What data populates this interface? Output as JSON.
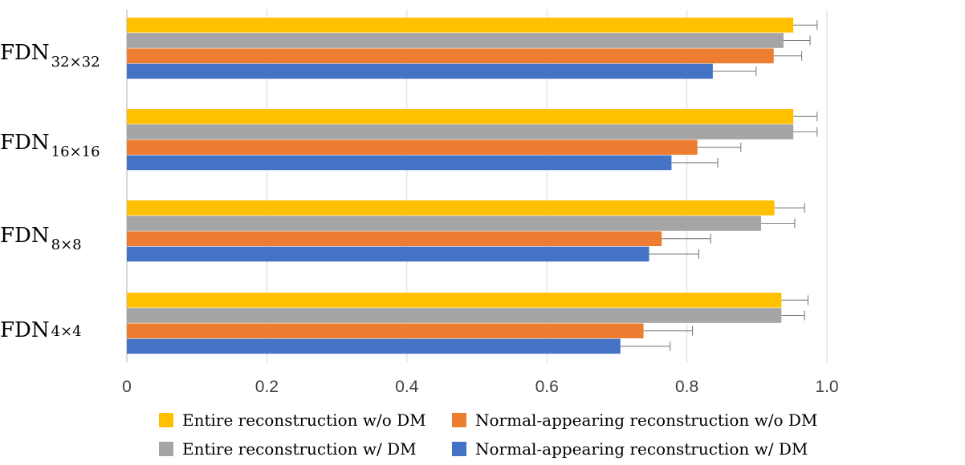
{
  "chart_data": {
    "type": "bar",
    "orientation": "horizontal",
    "title": "",
    "xlabel": "",
    "ylabel": "",
    "xlim": [
      0,
      1.0
    ],
    "x_ticks": [
      0,
      0.2,
      0.4,
      0.6,
      0.8,
      1.0
    ],
    "x_tick_labels": [
      "0",
      "0.2",
      "0.4",
      "0.6",
      "0.8",
      "1.0"
    ],
    "grid": true,
    "legend_position": "bottom",
    "categories": [
      {
        "base": "FDN",
        "sub": "32×32",
        "sub_style": "subscript"
      },
      {
        "base": "FDN",
        "sub": "16×16",
        "sub_style": "subscript"
      },
      {
        "base": "FDN",
        "sub": "8×8",
        "sub_style": "subscript"
      },
      {
        "base": "FDN",
        "sub": "4×4",
        "sub_style": "inline"
      }
    ],
    "series": [
      {
        "name": "Entire reconstruction w/o DM",
        "color": "#FFC000",
        "values": [
          0.952,
          0.952,
          0.925,
          0.935
        ],
        "errors": [
          0.034,
          0.034,
          0.043,
          0.038
        ]
      },
      {
        "name": "Entire reconstruction w/ DM",
        "color": "#A5A5A5",
        "values": [
          0.938,
          0.952,
          0.906,
          0.935
        ],
        "errors": [
          0.038,
          0.034,
          0.048,
          0.033
        ]
      },
      {
        "name": "Normal-appearing reconstruction w/o DM",
        "color": "#ED7D31",
        "values": [
          0.924,
          0.815,
          0.764,
          0.738
        ],
        "errors": [
          0.04,
          0.062,
          0.07,
          0.07
        ]
      },
      {
        "name": "Normal-appearing reconstruction w/ DM",
        "color": "#4472C4",
        "values": [
          0.837,
          0.778,
          0.746,
          0.705
        ],
        "errors": [
          0.062,
          0.066,
          0.071,
          0.071
        ]
      }
    ]
  }
}
